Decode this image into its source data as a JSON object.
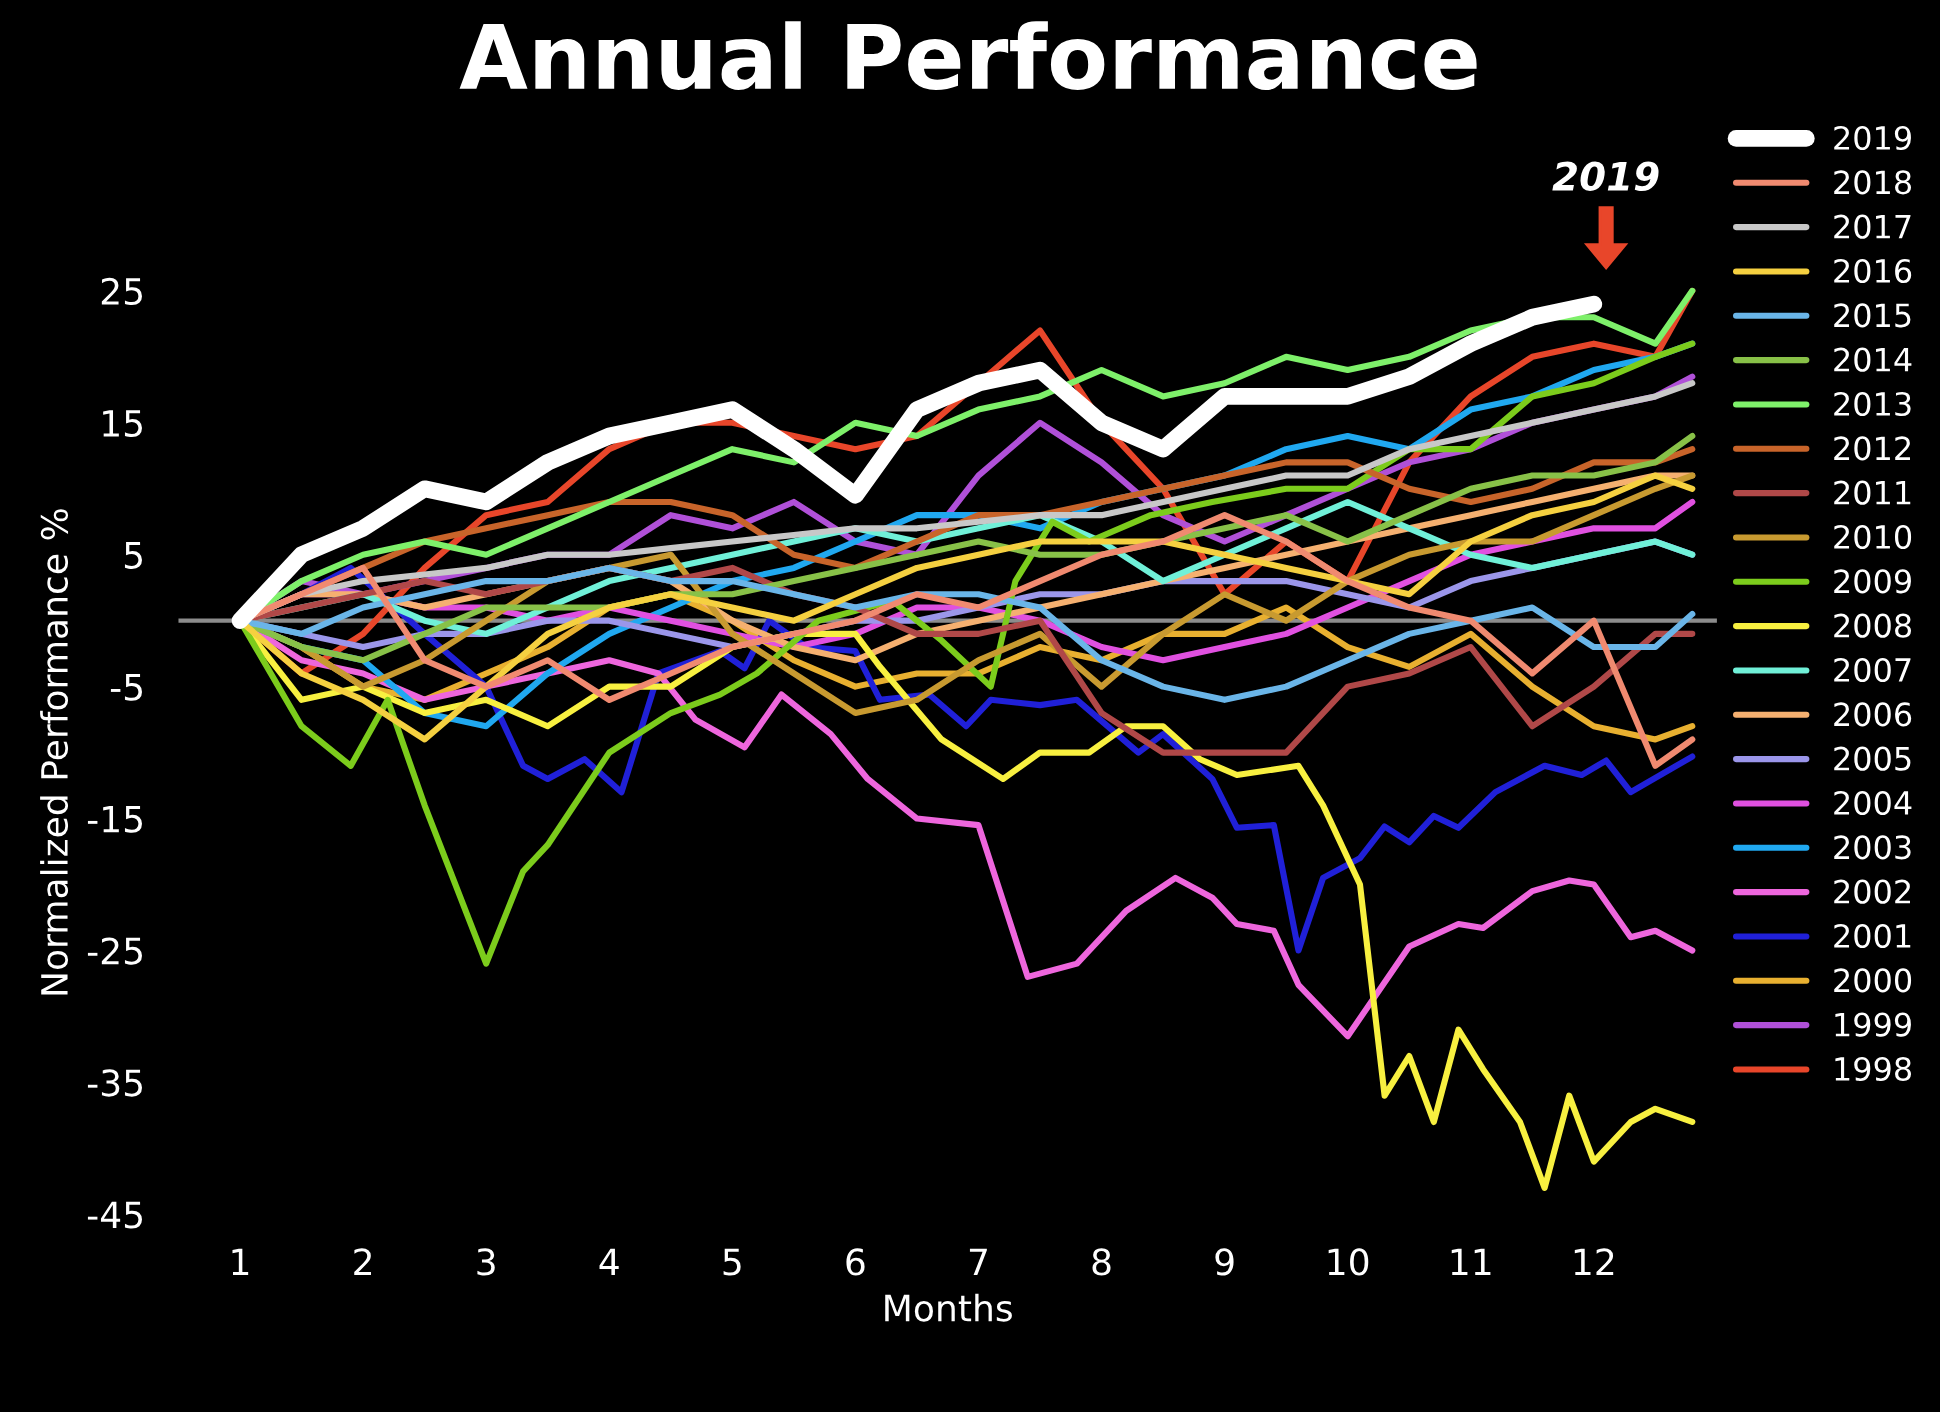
{
  "chart_data": {
    "type": "line",
    "title": "Annual Performance",
    "xlabel": "Months",
    "ylabel": "Normalized Performance %",
    "x": [
      1,
      1.5,
      2,
      2.5,
      3,
      3.5,
      4,
      4.5,
      5,
      5.5,
      6,
      6.5,
      7,
      7.5,
      8,
      8.5,
      9,
      9.5,
      10,
      10.5,
      11,
      11.5,
      12,
      12.5,
      12.8
    ],
    "xlim": [
      0.5,
      13
    ],
    "xticks": [
      1,
      2,
      3,
      4,
      5,
      6,
      7,
      8,
      9,
      10,
      11,
      12
    ],
    "ylim": [
      -45,
      25
    ],
    "yticks": [
      25,
      15,
      5,
      -5,
      -15,
      -25,
      -35,
      -45
    ],
    "grid": false,
    "legend": "right",
    "line_style": "solid",
    "marker": "none",
    "ref_lines": [
      {
        "axis": "y",
        "value": 0,
        "color": "#8c8c8c"
      }
    ],
    "annotations": [
      "2019"
    ],
    "series": [
      {
        "name": "2019",
        "color": "#ffffff",
        "values": [
          0,
          5,
          7,
          10,
          9,
          12,
          14,
          15,
          16,
          13,
          9.5,
          16,
          18,
          19,
          15,
          13,
          17,
          17,
          17,
          18.5,
          21,
          23,
          24,
          null,
          null
        ]
      },
      {
        "name": "2018",
        "color": "#f08a70",
        "values": [
          0,
          2,
          4,
          -3,
          -5,
          -3,
          -6,
          -4,
          -2,
          -1,
          0,
          2,
          1,
          3,
          5,
          6,
          8,
          6,
          3,
          1,
          0,
          -4,
          0,
          -11,
          -9
        ]
      },
      {
        "name": "2017",
        "color": "#c8c8c8",
        "values": [
          0,
          2,
          3,
          3.5,
          4,
          5,
          5,
          5.5,
          6,
          6.5,
          7,
          7,
          7.5,
          8,
          8,
          9,
          10,
          11,
          11,
          13,
          14,
          15,
          16,
          17,
          18
        ]
      },
      {
        "name": "2016",
        "color": "#f5d040",
        "values": [
          0,
          -4,
          -6,
          -9,
          -5,
          -1,
          1,
          2,
          1,
          0,
          2,
          4,
          5,
          6,
          6,
          6,
          5,
          4,
          3,
          2,
          6,
          8,
          9,
          11,
          10
        ]
      },
      {
        "name": "2015",
        "color": "#6ab5e8",
        "values": [
          0,
          -1,
          1,
          2,
          3,
          3,
          4,
          3,
          3,
          2,
          1,
          2,
          2,
          1,
          -3,
          -5,
          -6,
          -5,
          -3,
          -1,
          0,
          1,
          -2,
          -2,
          0.5
        ]
      },
      {
        "name": "2014",
        "color": "#88c148",
        "values": [
          0,
          -2,
          -3,
          -1,
          1,
          1,
          1,
          2,
          2,
          3,
          4,
          5,
          6,
          5,
          5,
          6,
          7,
          8,
          6,
          8,
          10,
          11,
          11,
          12,
          14
        ]
      },
      {
        "name": "2013",
        "color": "#7ef06a",
        "values": [
          0,
          3,
          5,
          6,
          5,
          7,
          9,
          11,
          13,
          12,
          15,
          14,
          16,
          17,
          19,
          17,
          18,
          20,
          19,
          20,
          22,
          23,
          23,
          21,
          25
        ]
      },
      {
        "name": "2012",
        "color": "#c8642a",
        "values": [
          0,
          2,
          4,
          6,
          7,
          8,
          9,
          9,
          8,
          5,
          4,
          6,
          8,
          8,
          9,
          10,
          11,
          12,
          12,
          10,
          9,
          10,
          12,
          12,
          13
        ]
      },
      {
        "name": "2011",
        "color": "#b04848",
        "values": [
          0,
          1,
          2,
          3,
          2,
          3,
          4,
          3,
          4,
          2,
          1,
          -1,
          -1,
          0,
          -7,
          -10,
          -10,
          -10,
          -5,
          -4,
          -2,
          -8,
          -5,
          -1,
          -1
        ]
      },
      {
        "name": "2010",
        "color": "#c89a30",
        "values": [
          0,
          -2,
          -5,
          -3,
          0,
          3,
          4,
          5,
          -1,
          -4,
          -7,
          -6,
          -3,
          -1,
          -5,
          -1,
          2,
          0,
          3,
          5,
          6,
          6,
          8,
          10,
          11
        ]
      },
      {
        "name": "2009",
        "color": "#7ccc1c",
        "x": [
          1,
          1.5,
          1.9,
          2.2,
          2.5,
          3,
          3.3,
          3.5,
          4,
          4.5,
          4.9,
          5.2,
          5.7,
          6.3,
          6.7,
          7.1,
          7.3,
          7.6,
          7.9,
          8.4,
          8.9,
          9.5,
          10,
          10.5,
          11,
          11.5,
          12,
          12.5,
          12.8
        ],
        "values": [
          0,
          -8,
          -11,
          -6,
          -14,
          -26,
          -19,
          -17,
          -10,
          -7,
          -5.6,
          -4,
          0,
          1.5,
          -1.5,
          -5,
          3,
          7.5,
          6,
          8,
          9,
          10,
          10,
          13,
          13,
          17,
          18,
          20,
          21
        ]
      },
      {
        "name": "2008",
        "color": "#f8f040",
        "x": [
          1,
          1.5,
          2,
          2.5,
          3,
          3.5,
          4,
          4.5,
          5,
          5.5,
          6,
          6.2,
          6.7,
          7.2,
          7.5,
          7.9,
          8.2,
          8.5,
          8.8,
          9.1,
          9.6,
          9.8,
          10.1,
          10.3,
          10.5,
          10.7,
          10.9,
          11.1,
          11.4,
          11.6,
          11.8,
          12.0,
          12.3,
          12.5,
          12.8
        ],
        "values": [
          0,
          -6,
          -5,
          -7,
          -6,
          -8,
          -5,
          -5,
          -2,
          -1,
          -1,
          -3.5,
          -9,
          -12,
          -10,
          -10,
          -8,
          -8,
          -10.5,
          -11.7,
          -11,
          -14,
          -20,
          -36,
          -33,
          -38,
          -31,
          -34,
          -38,
          -43,
          -36,
          -41,
          -38,
          -37,
          -38
        ]
      },
      {
        "name": "2007",
        "color": "#70f0d8",
        "values": [
          0,
          1,
          2,
          0,
          -1,
          1,
          3,
          4,
          5,
          6,
          7,
          6,
          7,
          8,
          6,
          3,
          5,
          7,
          9,
          7,
          5,
          4,
          5,
          6,
          5
        ]
      },
      {
        "name": "2006",
        "color": "#f5b070",
        "values": [
          0,
          2,
          2,
          1,
          2,
          3,
          4,
          3,
          0,
          -2,
          -3,
          -1,
          0,
          1,
          2,
          3,
          4,
          5,
          6,
          7,
          8,
          9,
          10,
          11,
          11
        ]
      },
      {
        "name": "2005",
        "color": "#9b96ea",
        "values": [
          0,
          -1,
          -2,
          -1,
          -1,
          0,
          0,
          -1,
          -2,
          -1,
          0,
          0,
          1,
          2,
          2,
          3,
          3,
          3,
          2,
          1,
          3,
          4,
          5,
          6,
          5
        ]
      },
      {
        "name": "2004",
        "color": "#e050e0",
        "values": [
          0,
          2,
          2,
          1,
          1,
          0,
          1,
          0,
          -1,
          -2,
          -1,
          1,
          1,
          0,
          -2,
          -3,
          -2,
          -1,
          1,
          3,
          5,
          6,
          7,
          7,
          9
        ]
      },
      {
        "name": "2003",
        "color": "#20a8f0",
        "values": [
          0,
          -2,
          -3,
          -7,
          -8,
          -4,
          -1,
          1,
          3,
          4,
          6,
          8,
          8,
          7,
          9,
          10,
          11,
          13,
          14,
          13,
          16,
          17,
          19,
          20,
          21
        ]
      },
      {
        "name": "2002",
        "color": "#ee66dd",
        "x": [
          1,
          1.5,
          2,
          2.5,
          3,
          3.5,
          4,
          4.4,
          4.7,
          5.1,
          5.4,
          5.8,
          6.1,
          6.5,
          7.0,
          7.4,
          7.8,
          8.2,
          8.6,
          8.9,
          9.1,
          9.4,
          9.6,
          10.0,
          10.5,
          10.9,
          11.1,
          11.5,
          11.8,
          12.0,
          12.3,
          12.5,
          12.8
        ],
        "values": [
          0,
          -3,
          -4,
          -6,
          -5,
          -4,
          -3,
          -4,
          -7.5,
          -9.6,
          -5.6,
          -8.6,
          -12,
          -15,
          -15.5,
          -27,
          -26,
          -22,
          -19.5,
          -21,
          -23,
          -23.5,
          -27.6,
          -31.5,
          -24.7,
          -23,
          -23.3,
          -20.5,
          -19.7,
          -20,
          -24,
          -23.5,
          -25
        ]
      },
      {
        "name": "2001",
        "color": "#2020d8",
        "x": [
          1,
          1.5,
          1.9,
          2.5,
          3,
          3.3,
          3.5,
          3.8,
          4.1,
          4.4,
          4.9,
          5.1,
          5.3,
          5.6,
          6.0,
          6.2,
          6.6,
          6.9,
          7.1,
          7.5,
          7.8,
          8.3,
          8.5,
          8.9,
          9.1,
          9.4,
          9.6,
          9.8,
          10.1,
          10.3,
          10.5,
          10.7,
          10.9,
          11.2,
          11.6,
          11.9,
          12.1,
          12.3,
          12.8
        ],
        "values": [
          0,
          2,
          4,
          -1,
          -5,
          -11,
          -12,
          -10.5,
          -13,
          -4,
          -2.3,
          -3.6,
          0,
          -2,
          -2.3,
          -6,
          -5.6,
          -8,
          -6,
          -6.4,
          -6,
          -10,
          -8.6,
          -12,
          -15.7,
          -15.5,
          -25,
          -19.5,
          -18,
          -15.6,
          -16.8,
          -14.8,
          -15.7,
          -13,
          -11,
          -11.7,
          -10.6,
          -13,
          -10.3
        ]
      },
      {
        "name": "2000",
        "color": "#e8b030",
        "values": [
          0,
          -2,
          -5,
          -6,
          -4,
          -2,
          1,
          2,
          0,
          -3,
          -5,
          -4,
          -4,
          -2,
          -3,
          -1,
          -1,
          1,
          -2,
          -3.5,
          -1,
          -5,
          -8,
          -9,
          -8
        ]
      },
      {
        "name": "1999",
        "color": "#b050d8",
        "values": [
          0,
          3,
          2,
          3,
          4,
          5,
          5,
          8,
          7,
          9,
          6,
          5,
          11,
          15,
          12,
          8,
          6,
          8,
          10,
          12,
          13,
          15,
          16,
          17,
          18.5
        ]
      },
      {
        "name": "1998",
        "color": "#e8462a",
        "values": [
          0,
          -4,
          -1,
          4,
          8,
          9,
          13,
          15,
          15,
          14,
          13,
          14,
          18,
          22,
          15,
          10,
          2,
          6,
          3,
          12,
          17,
          20,
          21,
          20,
          25
        ]
      }
    ]
  }
}
